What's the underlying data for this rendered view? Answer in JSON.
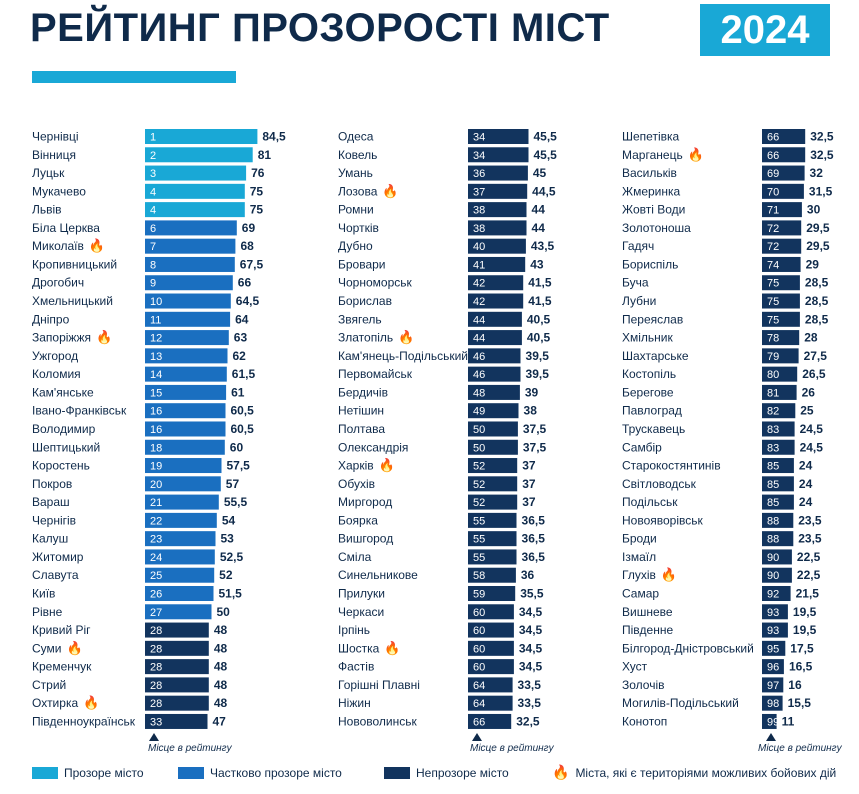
{
  "header": {
    "title": "РЕЙТИНГ ПРОЗОРОСТІ МІСТ",
    "year": "2024"
  },
  "colors": {
    "title": "#0f2a4a",
    "year_bg": "#19a8d6",
    "underline": "#19a8d6",
    "transparent": "#19a8d6",
    "partial": "#1a6fc0",
    "opaque": "#12345e",
    "flame": "#f5a623"
  },
  "axis_note": "Місце в рейтингу",
  "legend": {
    "transparent": "Прозоре місто",
    "partial": "Частково прозоре місто",
    "opaque": "Непрозоре місто",
    "combat": "Міста, які є територіями можливих бойових дій"
  },
  "chart_data": {
    "type": "bar",
    "xlim": [
      0,
      100
    ],
    "categories_legend": [
      "Прозоре місто",
      "Частково прозоре місто",
      "Непрозоре місто"
    ],
    "cities": [
      {
        "name": "Чернівці",
        "rank": 1,
        "score": 84.5,
        "score_label": "84,5",
        "category": "transparent",
        "combat": false
      },
      {
        "name": "Вінниця",
        "rank": 2,
        "score": 81,
        "score_label": "81",
        "category": "transparent",
        "combat": false
      },
      {
        "name": "Луцьк",
        "rank": 3,
        "score": 76,
        "score_label": "76",
        "category": "transparent",
        "combat": false
      },
      {
        "name": "Мукачево",
        "rank": 4,
        "score": 75,
        "score_label": "75",
        "category": "transparent",
        "combat": false
      },
      {
        "name": "Львів",
        "rank": 4,
        "score": 75,
        "score_label": "75",
        "category": "transparent",
        "combat": false
      },
      {
        "name": "Біла Церква",
        "rank": 6,
        "score": 69,
        "score_label": "69",
        "category": "partial",
        "combat": false
      },
      {
        "name": "Миколаїв",
        "rank": 7,
        "score": 68,
        "score_label": "68",
        "category": "partial",
        "combat": true
      },
      {
        "name": "Кропивницький",
        "rank": 8,
        "score": 67.5,
        "score_label": "67,5",
        "category": "partial",
        "combat": false
      },
      {
        "name": "Дрогобич",
        "rank": 9,
        "score": 66,
        "score_label": "66",
        "category": "partial",
        "combat": false
      },
      {
        "name": "Хмельницький",
        "rank": 10,
        "score": 64.5,
        "score_label": "64,5",
        "category": "partial",
        "combat": false
      },
      {
        "name": "Дніпро",
        "rank": 11,
        "score": 64,
        "score_label": "64",
        "category": "partial",
        "combat": false
      },
      {
        "name": "Запоріжжя",
        "rank": 12,
        "score": 63,
        "score_label": "63",
        "category": "partial",
        "combat": true
      },
      {
        "name": "Ужгород",
        "rank": 13,
        "score": 62,
        "score_label": "62",
        "category": "partial",
        "combat": false
      },
      {
        "name": "Коломия",
        "rank": 14,
        "score": 61.5,
        "score_label": "61,5",
        "category": "partial",
        "combat": false
      },
      {
        "name": "Кам'янське",
        "rank": 15,
        "score": 61,
        "score_label": "61",
        "category": "partial",
        "combat": false
      },
      {
        "name": "Івано-Франківськ",
        "rank": 16,
        "score": 60.5,
        "score_label": "60,5",
        "category": "partial",
        "combat": false
      },
      {
        "name": "Володимир",
        "rank": 16,
        "score": 60.5,
        "score_label": "60,5",
        "category": "partial",
        "combat": false
      },
      {
        "name": "Шептицький",
        "rank": 18,
        "score": 60,
        "score_label": "60",
        "category": "partial",
        "combat": false
      },
      {
        "name": "Коростень",
        "rank": 19,
        "score": 57.5,
        "score_label": "57,5",
        "category": "partial",
        "combat": false
      },
      {
        "name": "Покров",
        "rank": 20,
        "score": 57,
        "score_label": "57",
        "category": "partial",
        "combat": false
      },
      {
        "name": "Вараш",
        "rank": 21,
        "score": 55.5,
        "score_label": "55,5",
        "category": "partial",
        "combat": false
      },
      {
        "name": "Чернігів",
        "rank": 22,
        "score": 54,
        "score_label": "54",
        "category": "partial",
        "combat": false
      },
      {
        "name": "Калуш",
        "rank": 23,
        "score": 53,
        "score_label": "53",
        "category": "partial",
        "combat": false
      },
      {
        "name": "Житомир",
        "rank": 24,
        "score": 52.5,
        "score_label": "52,5",
        "category": "partial",
        "combat": false
      },
      {
        "name": "Славута",
        "rank": 25,
        "score": 52,
        "score_label": "52",
        "category": "partial",
        "combat": false
      },
      {
        "name": "Київ",
        "rank": 26,
        "score": 51.5,
        "score_label": "51,5",
        "category": "partial",
        "combat": false
      },
      {
        "name": "Рівне",
        "rank": 27,
        "score": 50,
        "score_label": "50",
        "category": "partial",
        "combat": false
      },
      {
        "name": "Кривий Ріг",
        "rank": 28,
        "score": 48,
        "score_label": "48",
        "category": "opaque",
        "combat": false
      },
      {
        "name": "Суми",
        "rank": 28,
        "score": 48,
        "score_label": "48",
        "category": "opaque",
        "combat": true
      },
      {
        "name": "Кременчук",
        "rank": 28,
        "score": 48,
        "score_label": "48",
        "category": "opaque",
        "combat": false
      },
      {
        "name": "Стрий",
        "rank": 28,
        "score": 48,
        "score_label": "48",
        "category": "opaque",
        "combat": false
      },
      {
        "name": "Охтирка",
        "rank": 28,
        "score": 48,
        "score_label": "48",
        "category": "opaque",
        "combat": true
      },
      {
        "name": "Південноукраїнськ",
        "rank": 33,
        "score": 47,
        "score_label": "47",
        "category": "opaque",
        "combat": false
      },
      {
        "name": "Одеса",
        "rank": 34,
        "score": 45.5,
        "score_label": "45,5",
        "category": "opaque",
        "combat": false
      },
      {
        "name": "Ковель",
        "rank": 34,
        "score": 45.5,
        "score_label": "45,5",
        "category": "opaque",
        "combat": false
      },
      {
        "name": "Умань",
        "rank": 36,
        "score": 45,
        "score_label": "45",
        "category": "opaque",
        "combat": false
      },
      {
        "name": "Лозова",
        "rank": 37,
        "score": 44.5,
        "score_label": "44,5",
        "category": "opaque",
        "combat": true
      },
      {
        "name": "Ромни",
        "rank": 38,
        "score": 44,
        "score_label": "44",
        "category": "opaque",
        "combat": false
      },
      {
        "name": "Чортків",
        "rank": 38,
        "score": 44,
        "score_label": "44",
        "category": "opaque",
        "combat": false
      },
      {
        "name": "Дубно",
        "rank": 40,
        "score": 43.5,
        "score_label": "43,5",
        "category": "opaque",
        "combat": false
      },
      {
        "name": "Бровари",
        "rank": 41,
        "score": 43,
        "score_label": "43",
        "category": "opaque",
        "combat": false
      },
      {
        "name": "Чорноморськ",
        "rank": 42,
        "score": 41.5,
        "score_label": "41,5",
        "category": "opaque",
        "combat": false
      },
      {
        "name": "Борислав",
        "rank": 42,
        "score": 41.5,
        "score_label": "41,5",
        "category": "opaque",
        "combat": false
      },
      {
        "name": "Звягель",
        "rank": 44,
        "score": 40.5,
        "score_label": "40,5",
        "category": "opaque",
        "combat": false
      },
      {
        "name": "Златопіль",
        "rank": 44,
        "score": 40.5,
        "score_label": "40,5",
        "category": "opaque",
        "combat": true
      },
      {
        "name": "Кам'янець-Подільський",
        "rank": 46,
        "score": 39.5,
        "score_label": "39,5",
        "category": "opaque",
        "combat": false
      },
      {
        "name": "Первомайськ",
        "rank": 46,
        "score": 39.5,
        "score_label": "39,5",
        "category": "opaque",
        "combat": false
      },
      {
        "name": "Бердичів",
        "rank": 48,
        "score": 39,
        "score_label": "39",
        "category": "opaque",
        "combat": false
      },
      {
        "name": "Нетішин",
        "rank": 49,
        "score": 38,
        "score_label": "38",
        "category": "opaque",
        "combat": false
      },
      {
        "name": "Полтава",
        "rank": 50,
        "score": 37.5,
        "score_label": "37,5",
        "category": "opaque",
        "combat": false
      },
      {
        "name": "Олександрія",
        "rank": 50,
        "score": 37.5,
        "score_label": "37,5",
        "category": "opaque",
        "combat": false
      },
      {
        "name": "Харків",
        "rank": 52,
        "score": 37,
        "score_label": "37",
        "category": "opaque",
        "combat": true
      },
      {
        "name": "Обухів",
        "rank": 52,
        "score": 37,
        "score_label": "37",
        "category": "opaque",
        "combat": false
      },
      {
        "name": "Миргород",
        "rank": 52,
        "score": 37,
        "score_label": "37",
        "category": "opaque",
        "combat": false
      },
      {
        "name": "Боярка",
        "rank": 55,
        "score": 36.5,
        "score_label": "36,5",
        "category": "opaque",
        "combat": false
      },
      {
        "name": "Вишгород",
        "rank": 55,
        "score": 36.5,
        "score_label": "36,5",
        "category": "opaque",
        "combat": false
      },
      {
        "name": "Сміла",
        "rank": 55,
        "score": 36.5,
        "score_label": "36,5",
        "category": "opaque",
        "combat": false
      },
      {
        "name": "Синельникове",
        "rank": 58,
        "score": 36,
        "score_label": "36",
        "category": "opaque",
        "combat": false
      },
      {
        "name": "Прилуки",
        "rank": 59,
        "score": 35.5,
        "score_label": "35,5",
        "category": "opaque",
        "combat": false
      },
      {
        "name": "Черкаси",
        "rank": 60,
        "score": 34.5,
        "score_label": "34,5",
        "category": "opaque",
        "combat": false
      },
      {
        "name": "Ірпінь",
        "rank": 60,
        "score": 34.5,
        "score_label": "34,5",
        "category": "opaque",
        "combat": false
      },
      {
        "name": "Шостка",
        "rank": 60,
        "score": 34.5,
        "score_label": "34,5",
        "category": "opaque",
        "combat": true
      },
      {
        "name": "Фастів",
        "rank": 60,
        "score": 34.5,
        "score_label": "34,5",
        "category": "opaque",
        "combat": false
      },
      {
        "name": "Горішні Плавні",
        "rank": 64,
        "score": 33.5,
        "score_label": "33,5",
        "category": "opaque",
        "combat": false
      },
      {
        "name": "Ніжин",
        "rank": 64,
        "score": 33.5,
        "score_label": "33,5",
        "category": "opaque",
        "combat": false
      },
      {
        "name": "Нововолинськ",
        "rank": 66,
        "score": 32.5,
        "score_label": "32,5",
        "category": "opaque",
        "combat": false
      },
      {
        "name": "Шепетівка",
        "rank": 66,
        "score": 32.5,
        "score_label": "32,5",
        "category": "opaque",
        "combat": false
      },
      {
        "name": "Марганець",
        "rank": 66,
        "score": 32.5,
        "score_label": "32,5",
        "category": "opaque",
        "combat": true
      },
      {
        "name": "Васильків",
        "rank": 69,
        "score": 32,
        "score_label": "32",
        "category": "opaque",
        "combat": false
      },
      {
        "name": "Жмеринка",
        "rank": 70,
        "score": 31.5,
        "score_label": "31,5",
        "category": "opaque",
        "combat": false
      },
      {
        "name": "Жовті Води",
        "rank": 71,
        "score": 30,
        "score_label": "30",
        "category": "opaque",
        "combat": false
      },
      {
        "name": "Золотоноша",
        "rank": 72,
        "score": 29.5,
        "score_label": "29,5",
        "category": "opaque",
        "combat": false
      },
      {
        "name": "Гадяч",
        "rank": 72,
        "score": 29.5,
        "score_label": "29,5",
        "category": "opaque",
        "combat": false
      },
      {
        "name": "Бориспіль",
        "rank": 74,
        "score": 29,
        "score_label": "29",
        "category": "opaque",
        "combat": false
      },
      {
        "name": "Буча",
        "rank": 75,
        "score": 28.5,
        "score_label": "28,5",
        "category": "opaque",
        "combat": false
      },
      {
        "name": "Лубни",
        "rank": 75,
        "score": 28.5,
        "score_label": "28,5",
        "category": "opaque",
        "combat": false
      },
      {
        "name": "Переяслав",
        "rank": 75,
        "score": 28.5,
        "score_label": "28,5",
        "category": "opaque",
        "combat": false
      },
      {
        "name": "Хмільник",
        "rank": 78,
        "score": 28,
        "score_label": "28",
        "category": "opaque",
        "combat": false
      },
      {
        "name": "Шахтарське",
        "rank": 79,
        "score": 27.5,
        "score_label": "27,5",
        "category": "opaque",
        "combat": false
      },
      {
        "name": "Костопіль",
        "rank": 80,
        "score": 26.5,
        "score_label": "26,5",
        "category": "opaque",
        "combat": false
      },
      {
        "name": "Берегове",
        "rank": 81,
        "score": 26,
        "score_label": "26",
        "category": "opaque",
        "combat": false
      },
      {
        "name": "Павлоград",
        "rank": 82,
        "score": 25,
        "score_label": "25",
        "category": "opaque",
        "combat": false
      },
      {
        "name": "Трускавець",
        "rank": 83,
        "score": 24.5,
        "score_label": "24,5",
        "category": "opaque",
        "combat": false
      },
      {
        "name": "Самбір",
        "rank": 83,
        "score": 24.5,
        "score_label": "24,5",
        "category": "opaque",
        "combat": false
      },
      {
        "name": "Старокостянтинів",
        "rank": 85,
        "score": 24,
        "score_label": "24",
        "category": "opaque",
        "combat": false
      },
      {
        "name": "Світловодськ",
        "rank": 85,
        "score": 24,
        "score_label": "24",
        "category": "opaque",
        "combat": false
      },
      {
        "name": "Подільськ",
        "rank": 85,
        "score": 24,
        "score_label": "24",
        "category": "opaque",
        "combat": false
      },
      {
        "name": "Новояворівськ",
        "rank": 88,
        "score": 23.5,
        "score_label": "23,5",
        "category": "opaque",
        "combat": false
      },
      {
        "name": "Броди",
        "rank": 88,
        "score": 23.5,
        "score_label": "23,5",
        "category": "opaque",
        "combat": false
      },
      {
        "name": "Ізмаїл",
        "rank": 90,
        "score": 22.5,
        "score_label": "22,5",
        "category": "opaque",
        "combat": false
      },
      {
        "name": "Глухів",
        "rank": 90,
        "score": 22.5,
        "score_label": "22,5",
        "category": "opaque",
        "combat": true
      },
      {
        "name": "Самар",
        "rank": 92,
        "score": 21.5,
        "score_label": "21,5",
        "category": "opaque",
        "combat": false
      },
      {
        "name": "Вишневе",
        "rank": 93,
        "score": 19.5,
        "score_label": "19,5",
        "category": "opaque",
        "combat": false
      },
      {
        "name": "Південне",
        "rank": 93,
        "score": 19.5,
        "score_label": "19,5",
        "category": "opaque",
        "combat": false
      },
      {
        "name": "Білгород-Дністровський",
        "rank": 95,
        "score": 17.5,
        "score_label": "17,5",
        "category": "opaque",
        "combat": false
      },
      {
        "name": "Хуст",
        "rank": 96,
        "score": 16.5,
        "score_label": "16,5",
        "category": "opaque",
        "combat": false
      },
      {
        "name": "Золочів",
        "rank": 97,
        "score": 16,
        "score_label": "16",
        "category": "opaque",
        "combat": false
      },
      {
        "name": "Могилів-Подільський",
        "rank": 98,
        "score": 15.5,
        "score_label": "15,5",
        "category": "opaque",
        "combat": false
      },
      {
        "name": "Конотоп",
        "rank": 99,
        "score": 11,
        "score_label": "11",
        "category": "opaque",
        "combat": false
      }
    ]
  }
}
